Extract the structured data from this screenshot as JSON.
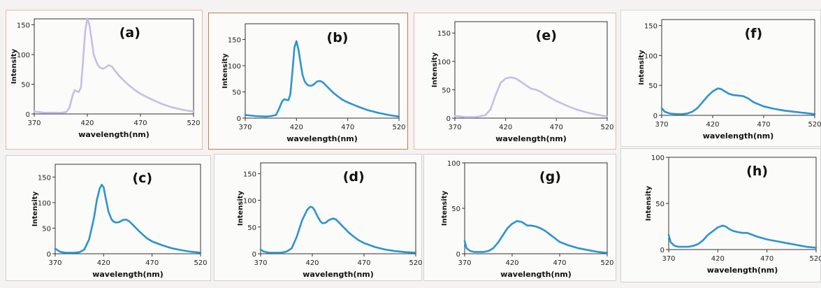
{
  "figure": {
    "colors": {
      "line": "#2a94d0",
      "line_faded": "#c8bde6",
      "axis": "#333333"
    }
  },
  "chart_data": [
    {
      "type": "line",
      "panel_label": "(a)",
      "line_color": "#c8bde6",
      "xlabel": "wavelength(nm)",
      "ylabel": "Intensity",
      "xlim": [
        370,
        520
      ],
      "ylim": [
        0,
        160
      ],
      "xticks": [
        370,
        420,
        470,
        520
      ],
      "yticks": [
        0,
        50,
        100,
        150
      ],
      "grid": false,
      "x": [
        370,
        380,
        390,
        395,
        400,
        403,
        406,
        408,
        410,
        412,
        414,
        416,
        418,
        420,
        422,
        424,
        426,
        428,
        430,
        432,
        435,
        438,
        440,
        443,
        446,
        450,
        455,
        460,
        465,
        470,
        480,
        490,
        500,
        510,
        520
      ],
      "y": [
        4,
        2,
        2,
        2,
        3,
        10,
        30,
        40,
        38,
        37,
        45,
        90,
        140,
        161,
        150,
        125,
        100,
        90,
        82,
        78,
        76,
        79,
        82,
        80,
        73,
        64,
        55,
        47,
        40,
        34,
        25,
        17,
        11,
        7,
        4
      ]
    },
    {
      "type": "line",
      "panel_label": "(b)",
      "line_color": "#2a94d0",
      "xlabel": "wavelength(nm)",
      "ylabel": "Intensity",
      "xlim": [
        370,
        520
      ],
      "ylim": [
        0,
        180
      ],
      "xticks": [
        370,
        420,
        470,
        520
      ],
      "yticks": [
        0,
        50,
        100,
        150
      ],
      "grid": false,
      "x": [
        370,
        380,
        390,
        395,
        400,
        403,
        406,
        408,
        410,
        412,
        414,
        416,
        418,
        420,
        422,
        424,
        426,
        428,
        430,
        432,
        435,
        438,
        440,
        443,
        446,
        450,
        455,
        460,
        465,
        470,
        480,
        490,
        500,
        510,
        520
      ],
      "y": [
        6,
        4,
        3,
        4,
        6,
        18,
        32,
        36,
        35,
        34,
        45,
        88,
        135,
        147,
        130,
        105,
        82,
        70,
        65,
        62,
        62,
        66,
        70,
        71,
        68,
        60,
        50,
        42,
        35,
        30,
        22,
        15,
        10,
        6,
        3
      ]
    },
    {
      "type": "line",
      "panel_label": "(e)",
      "line_color": "#c8bde6",
      "xlabel": "wavelength(nm)",
      "ylabel": "Intensity",
      "xlim": [
        370,
        520
      ],
      "ylim": [
        0,
        170
      ],
      "xticks": [
        370,
        420,
        470,
        520
      ],
      "yticks": [
        0,
        50,
        100,
        150
      ],
      "grid": false,
      "x": [
        370,
        380,
        390,
        400,
        405,
        410,
        415,
        420,
        425,
        430,
        435,
        440,
        445,
        450,
        455,
        460,
        465,
        470,
        480,
        490,
        500,
        510,
        520
      ],
      "y": [
        4,
        2,
        2,
        5,
        15,
        40,
        62,
        70,
        72,
        70,
        64,
        58,
        52,
        50,
        46,
        40,
        35,
        30,
        22,
        15,
        10,
        6,
        3
      ]
    },
    {
      "type": "line",
      "panel_label": "(f)",
      "line_color": "#2a94d0",
      "xlabel": "wavelength(nm)",
      "ylabel": "Intensity",
      "xlim": [
        370,
        520
      ],
      "ylim": [
        0,
        160
      ],
      "xticks": [
        370,
        420,
        470,
        520
      ],
      "yticks": [
        0,
        50,
        100,
        150
      ],
      "grid": false,
      "x": [
        370,
        373,
        378,
        385,
        390,
        395,
        400,
        405,
        410,
        415,
        420,
        425,
        428,
        432,
        436,
        440,
        445,
        450,
        455,
        460,
        470,
        480,
        490,
        500,
        510,
        520
      ],
      "y": [
        12,
        6,
        3,
        2,
        2,
        3,
        6,
        12,
        22,
        32,
        40,
        45,
        44,
        40,
        36,
        34,
        33,
        32,
        28,
        22,
        15,
        11,
        8,
        6,
        4,
        2
      ]
    },
    {
      "type": "line",
      "panel_label": "(c)",
      "line_color": "#2a94d0",
      "xlabel": "wavelength(nm)",
      "ylabel": "Intensity",
      "xlim": [
        370,
        520
      ],
      "ylim": [
        0,
        175
      ],
      "xticks": [
        370,
        420,
        470,
        520
      ],
      "yticks": [
        0,
        50,
        100,
        150
      ],
      "grid": false,
      "x": [
        370,
        375,
        380,
        390,
        395,
        400,
        405,
        410,
        413,
        416,
        418,
        420,
        422,
        425,
        428,
        430,
        433,
        436,
        440,
        443,
        446,
        450,
        455,
        460,
        465,
        470,
        480,
        490,
        500,
        510,
        520
      ],
      "y": [
        10,
        4,
        2,
        2,
        3,
        8,
        28,
        70,
        105,
        128,
        135,
        130,
        110,
        82,
        68,
        63,
        61,
        62,
        66,
        67,
        64,
        57,
        47,
        38,
        30,
        24,
        17,
        11,
        7,
        4,
        2
      ]
    },
    {
      "type": "line",
      "panel_label": "(d)",
      "line_color": "#2a94d0",
      "xlabel": "wavelength(nm)",
      "ylabel": "Intensity",
      "xlim": [
        370,
        520
      ],
      "ylim": [
        0,
        170
      ],
      "xticks": [
        370,
        420,
        470,
        520
      ],
      "yticks": [
        0,
        50,
        100,
        150
      ],
      "grid": false,
      "x": [
        370,
        373,
        378,
        385,
        390,
        395,
        400,
        405,
        410,
        415,
        418,
        420,
        422,
        425,
        428,
        430,
        433,
        436,
        440,
        443,
        446,
        450,
        455,
        460,
        465,
        470,
        480,
        490,
        500,
        510,
        520
      ],
      "y": [
        8,
        4,
        2,
        2,
        2,
        4,
        10,
        32,
        62,
        82,
        88,
        87,
        82,
        70,
        60,
        57,
        58,
        63,
        66,
        64,
        58,
        50,
        40,
        32,
        25,
        20,
        13,
        8,
        5,
        3,
        2
      ]
    },
    {
      "type": "line",
      "panel_label": "(g)",
      "line_color": "#2a94d0",
      "xlabel": "wavelength(nm)",
      "ylabel": "Intensity",
      "xlim": [
        370,
        520
      ],
      "ylim": [
        0,
        100
      ],
      "xticks": [
        370,
        420,
        470,
        520
      ],
      "yticks": [
        0,
        50,
        100
      ],
      "grid": false,
      "x": [
        370,
        372,
        376,
        380,
        385,
        390,
        395,
        400,
        405,
        410,
        415,
        420,
        425,
        430,
        433,
        436,
        440,
        445,
        450,
        455,
        460,
        465,
        470,
        480,
        490,
        500,
        510,
        520
      ],
      "y": [
        14,
        6,
        3,
        2,
        2,
        2,
        3,
        6,
        12,
        20,
        28,
        33,
        36,
        35,
        33,
        31,
        31,
        30,
        28,
        25,
        21,
        17,
        13,
        9,
        6,
        4,
        2,
        1
      ]
    },
    {
      "type": "line",
      "panel_label": "(h)",
      "line_color": "#2a94d0",
      "xlabel": "wavelength(nm)",
      "ylabel": "Intensity",
      "xlim": [
        370,
        520
      ],
      "ylim": [
        0,
        100
      ],
      "xticks": [
        370,
        420,
        470,
        520
      ],
      "yticks": [
        0,
        50,
        100
      ],
      "grid": false,
      "x": [
        370,
        372,
        376,
        380,
        385,
        390,
        395,
        400,
        405,
        410,
        415,
        420,
        425,
        428,
        432,
        436,
        440,
        445,
        450,
        455,
        460,
        470,
        480,
        490,
        500,
        510,
        520
      ],
      "y": [
        16,
        8,
        4,
        3,
        3,
        3,
        4,
        6,
        10,
        16,
        20,
        24,
        26,
        25,
        22,
        20,
        19,
        18,
        18,
        16,
        14,
        11,
        9,
        7,
        5,
        3,
        2
      ]
    }
  ]
}
